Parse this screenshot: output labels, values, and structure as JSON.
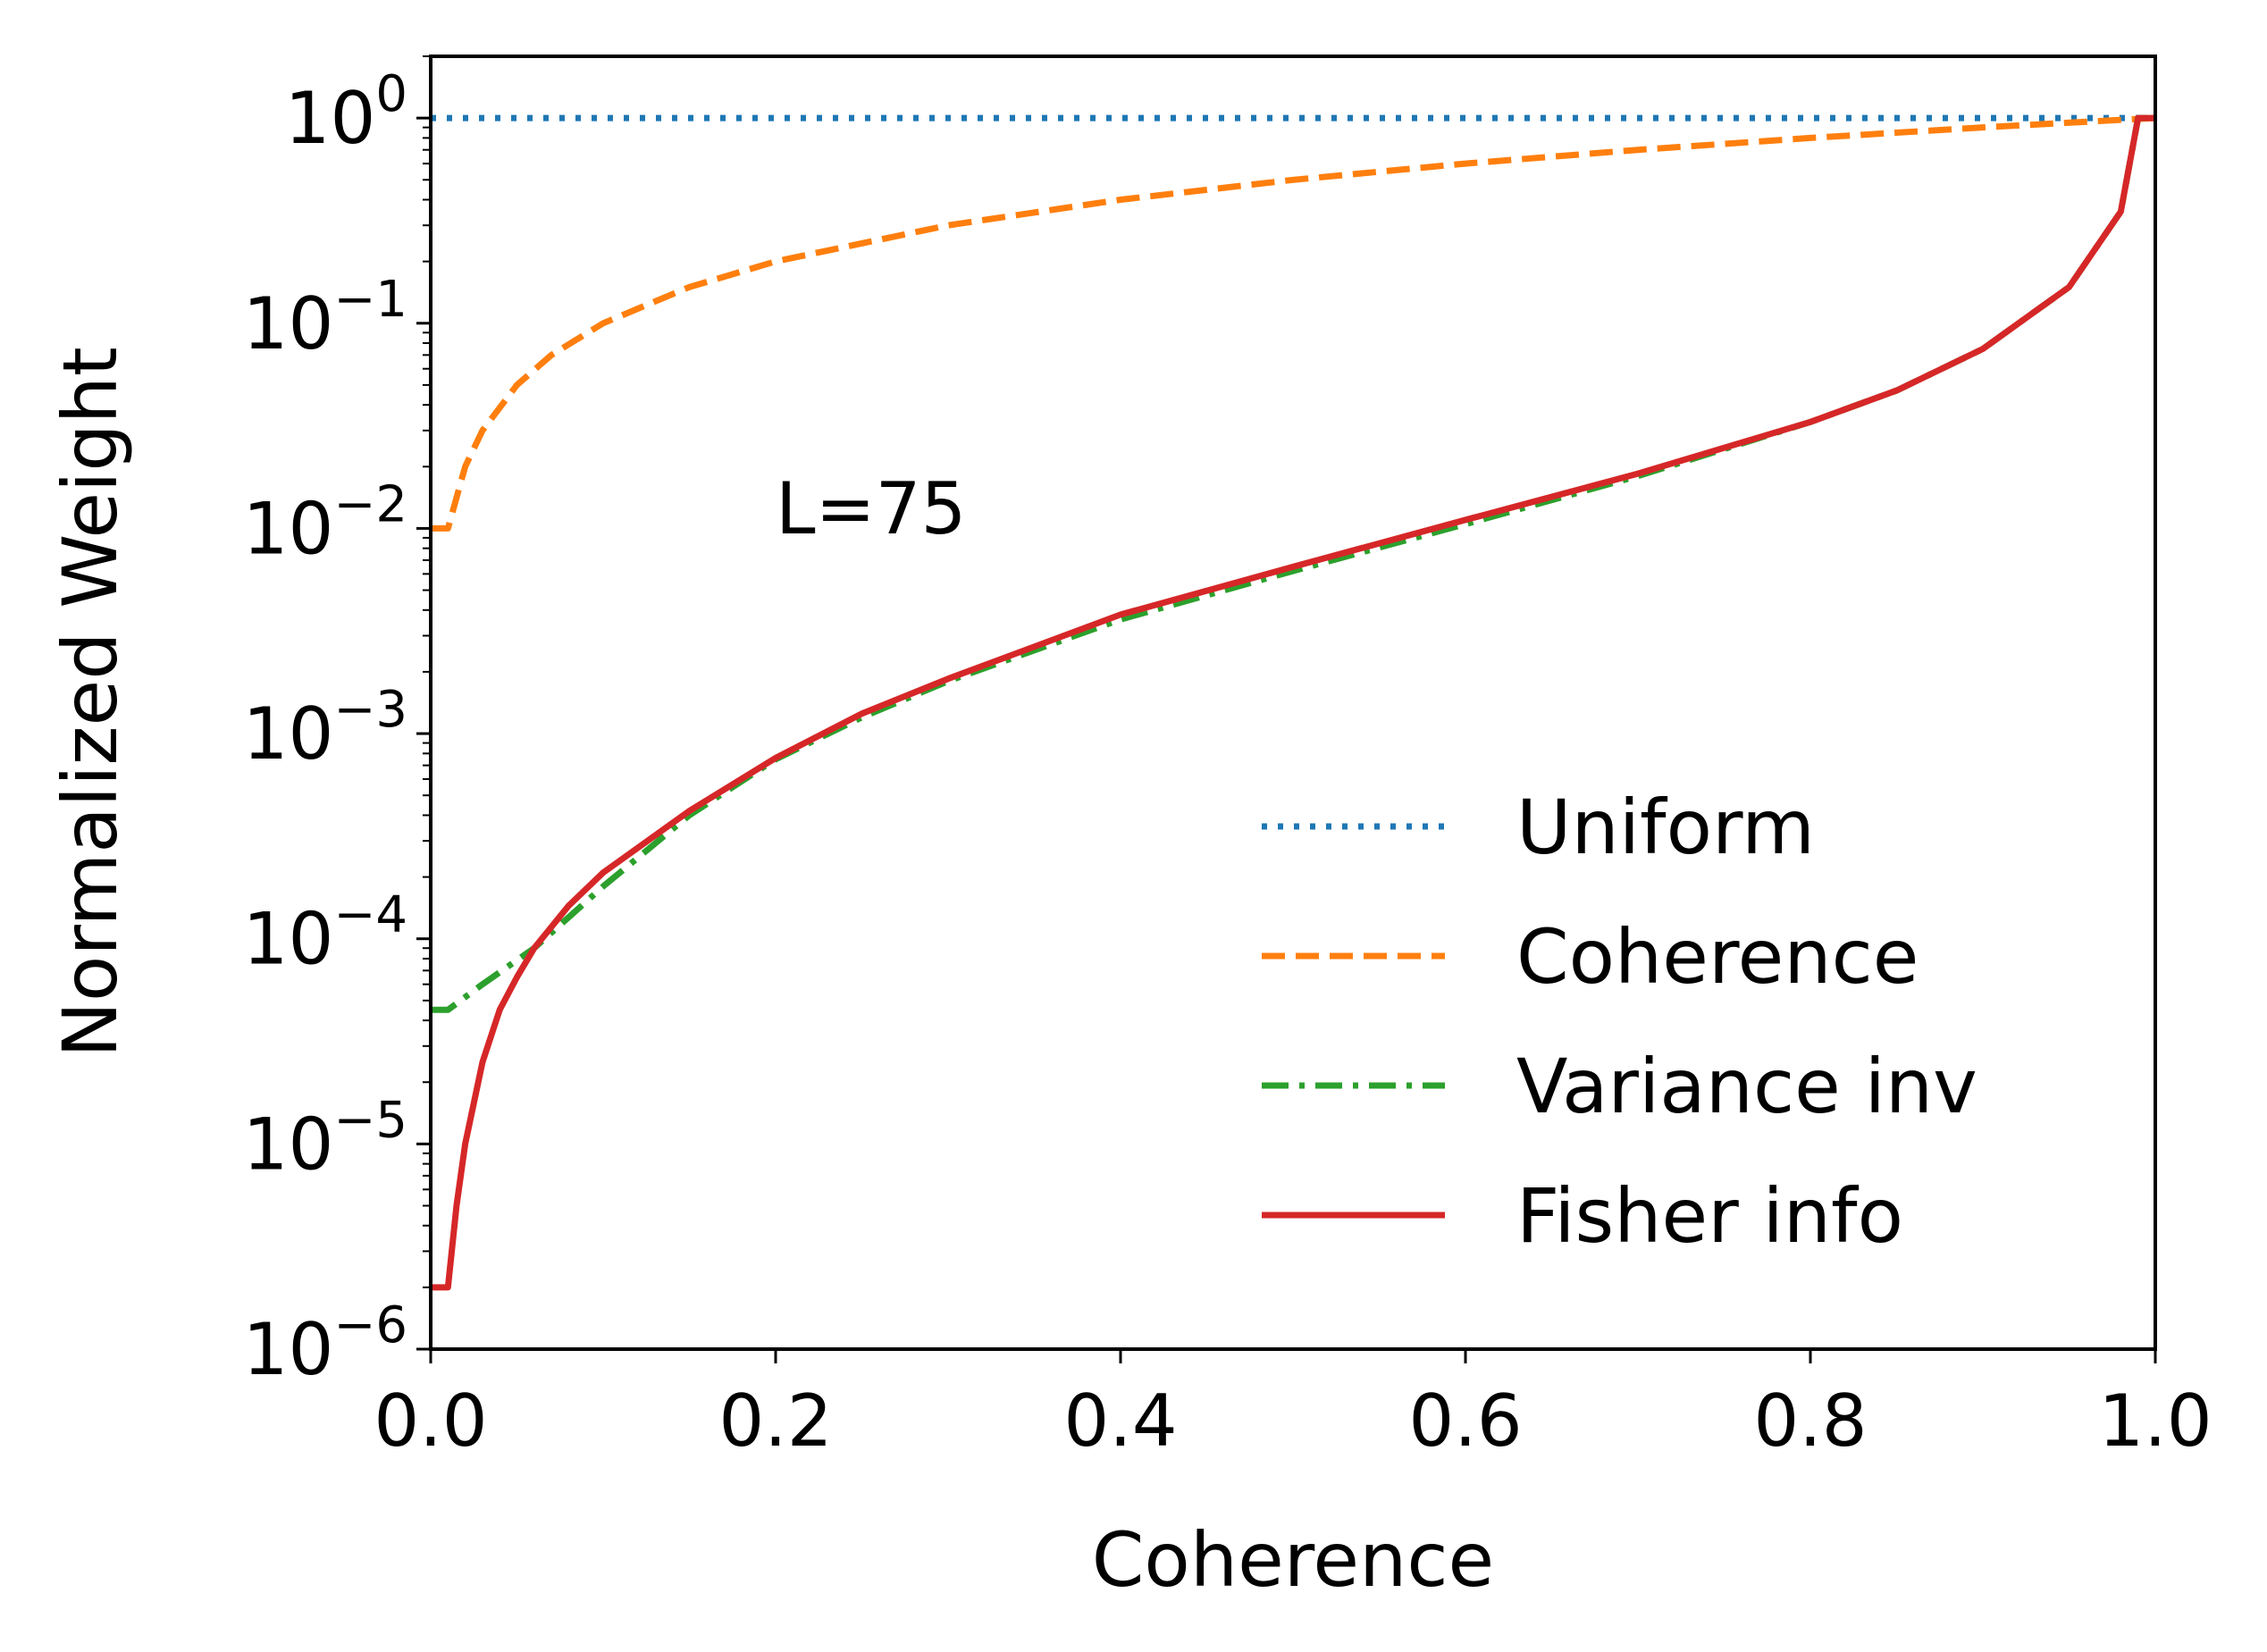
{
  "chart_data": {
    "type": "line",
    "title": "",
    "xlabel": "Coherence",
    "ylabel": "Normalized Weight",
    "xlim": [
      0.0,
      1.0
    ],
    "ylim": [
      1e-06,
      2.0
    ],
    "yscale": "log",
    "grid": false,
    "legend_position": "lower-right",
    "annotation": {
      "text": "L=75",
      "x": 0.2,
      "y": 0.012
    },
    "xticks": [
      {
        "value": 0.0,
        "label": "0.0"
      },
      {
        "value": 0.2,
        "label": "0.2"
      },
      {
        "value": 0.4,
        "label": "0.4"
      },
      {
        "value": 0.6,
        "label": "0.6"
      },
      {
        "value": 0.8,
        "label": "0.8"
      },
      {
        "value": 1.0,
        "label": "1.0"
      }
    ],
    "yticks": [
      {
        "value": 1e-06,
        "base": "10",
        "exp": "−6"
      },
      {
        "value": 1e-05,
        "base": "10",
        "exp": "−5"
      },
      {
        "value": 0.0001,
        "base": "10",
        "exp": "−4"
      },
      {
        "value": 0.001,
        "base": "10",
        "exp": "−3"
      },
      {
        "value": 0.01,
        "base": "10",
        "exp": "−2"
      },
      {
        "value": 0.1,
        "base": "10",
        "exp": "−1"
      },
      {
        "value": 1.0,
        "base": "10",
        "exp": "0"
      }
    ],
    "series": [
      {
        "name": "Uniform",
        "color": "#1f77b4",
        "style": "dotted",
        "x": [
          0.0,
          1.0
        ],
        "y": [
          1.0,
          1.0
        ]
      },
      {
        "name": "Coherence",
        "color": "#ff7f0e",
        "style": "dashed",
        "x": [
          0.0,
          0.01,
          0.02,
          0.03,
          0.05,
          0.07,
          0.1,
          0.15,
          0.2,
          0.3,
          0.4,
          0.5,
          0.6,
          0.7,
          0.8,
          0.9,
          0.99,
          1.0
        ],
        "y": [
          0.01,
          0.01,
          0.02,
          0.03,
          0.05,
          0.07,
          0.1,
          0.15,
          0.2,
          0.3,
          0.4,
          0.5,
          0.6,
          0.7,
          0.8,
          0.9,
          0.99,
          1.0
        ]
      },
      {
        "name": "Variance inv",
        "color": "#2ca02c",
        "style": "dashdot",
        "x": [
          0.0,
          0.01,
          0.03,
          0.06,
          0.1,
          0.15,
          0.2,
          0.25,
          0.3,
          0.4,
          0.5,
          0.6,
          0.7,
          0.8,
          0.85,
          0.9,
          0.95,
          0.98,
          0.99,
          1.0
        ],
        "y": [
          4.5e-05,
          4.5e-05,
          6e-05,
          9e-05,
          0.00018,
          0.0004,
          0.00075,
          0.0012,
          0.0018,
          0.0036,
          0.0062,
          0.0105,
          0.018,
          0.033,
          0.047,
          0.075,
          0.15,
          0.35,
          1.0,
          1.0
        ]
      },
      {
        "name": "Fisher info",
        "color": "#d62728",
        "style": "solid",
        "x": [
          0.0,
          0.01,
          0.015,
          0.02,
          0.03,
          0.04,
          0.05,
          0.06,
          0.08,
          0.1,
          0.15,
          0.2,
          0.25,
          0.3,
          0.4,
          0.5,
          0.6,
          0.7,
          0.8,
          0.85,
          0.9,
          0.95,
          0.98,
          0.99,
          1.0
        ],
        "y": [
          2e-06,
          2e-06,
          5e-06,
          1e-05,
          2.5e-05,
          4.5e-05,
          6.5e-05,
          9e-05,
          0.000145,
          0.00021,
          0.00042,
          0.00076,
          0.00125,
          0.00185,
          0.0038,
          0.0065,
          0.011,
          0.0185,
          0.033,
          0.047,
          0.075,
          0.15,
          0.35,
          1.0,
          1.0
        ]
      }
    ]
  }
}
